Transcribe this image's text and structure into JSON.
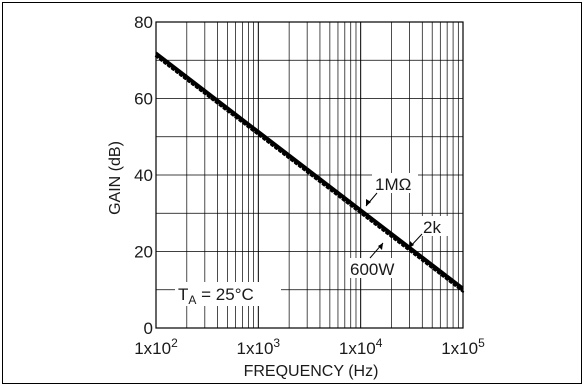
{
  "chart_data": {
    "type": "line",
    "x_scale": "log",
    "xlim": [
      100,
      100000
    ],
    "ylim": [
      0,
      80
    ],
    "xlabel": "FREQUENCY (Hz)",
    "ylabel": "GAIN (dB)",
    "grid": true,
    "x_ticks": [
      {
        "base": "1x10",
        "exp": "2",
        "value": 100
      },
      {
        "base": "1x10",
        "exp": "3",
        "value": 1000
      },
      {
        "base": "1x10",
        "exp": "4",
        "value": 10000
      },
      {
        "base": "1x10",
        "exp": "5",
        "value": 100000
      }
    ],
    "y_ticks": [
      "0",
      "20",
      "40",
      "60",
      "80"
    ],
    "y_tick_values": [
      0,
      20,
      40,
      60,
      80
    ],
    "series": [
      {
        "name": "1MΩ",
        "style": "solid",
        "x": [
          100,
          1000,
          10000,
          100000
        ],
        "y": [
          72,
          51.5,
          31,
          10.5
        ]
      },
      {
        "name": "2k",
        "style": "solid",
        "x": [
          100,
          1000,
          10000,
          100000
        ],
        "y": [
          71.5,
          51,
          30.5,
          10
        ]
      },
      {
        "name": "600W",
        "style": "dotted",
        "x": [
          100,
          1000,
          10000,
          100000
        ],
        "y": [
          71,
          50.5,
          30,
          9.5
        ]
      }
    ],
    "annotations": {
      "ta_prefix": "T",
      "ta_sub": "A",
      "ta_suffix": " = 25°C"
    }
  }
}
